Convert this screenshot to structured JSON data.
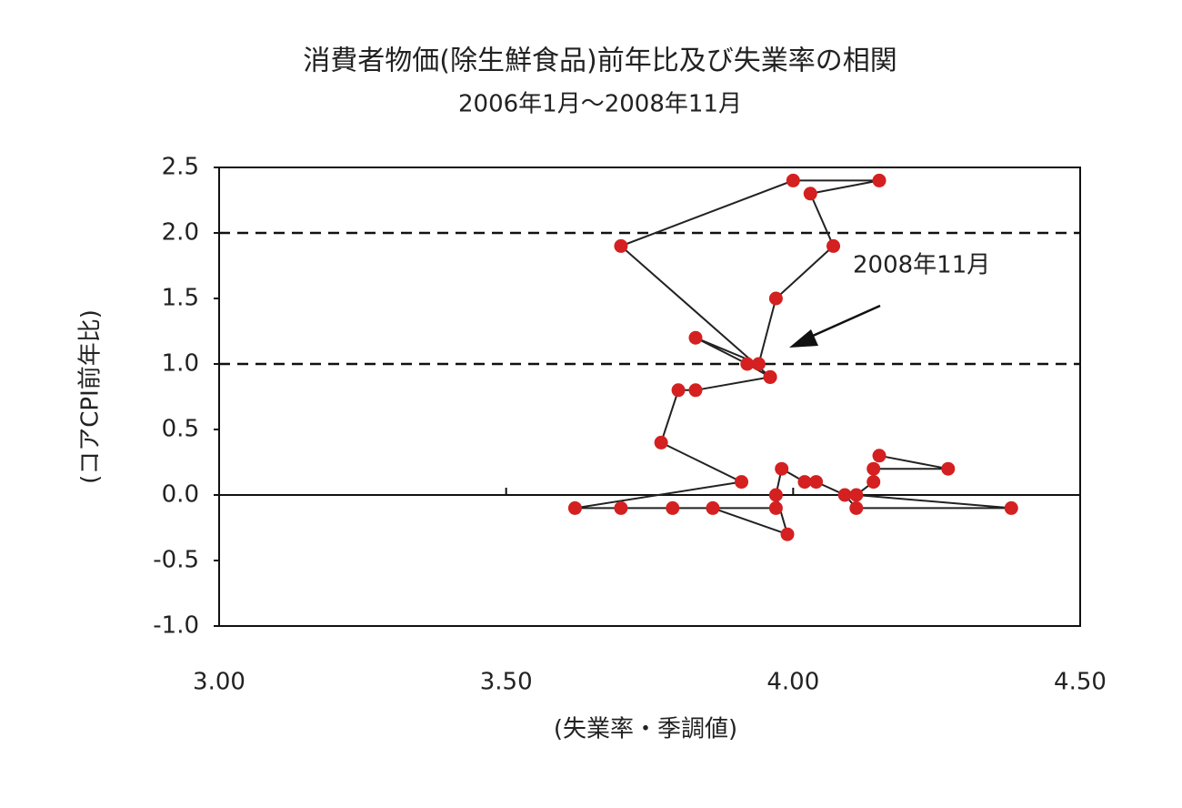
{
  "chart_data": {
    "type": "scatter",
    "title": "消費者物価(除生鮮食品)前年比及び失業率の相関",
    "subtitle": "2006年1月～2008年11月",
    "xlabel": "(失業率・季調値)",
    "ylabel": "(コアCPI前年比)",
    "annotation": "2008年11月",
    "color": "#d42020",
    "line_color": "#222222",
    "connected": true,
    "dashed_lines": [
      1,
      2
    ],
    "x": [
      4.15,
      4.27,
      4.14,
      4.14,
      4.11,
      4.38,
      4.11,
      4.09,
      4.04,
      4.02,
      3.98,
      3.97,
      3.99,
      3.86,
      3.97,
      3.79,
      3.7,
      3.62,
      3.91,
      3.77,
      3.8,
      3.83,
      3.96,
      3.92,
      3.83,
      3.94,
      3.97,
      4.07,
      4.03,
      4.15,
      4.0,
      3.7,
      3.96
    ],
    "y": [
      0.3,
      0.2,
      0.2,
      0.1,
      0.0,
      -0.1,
      -0.1,
      0.0,
      0.1,
      0.1,
      0.2,
      0.0,
      -0.3,
      -0.1,
      -0.1,
      -0.1,
      -0.1,
      -0.1,
      0.1,
      0.4,
      0.8,
      0.8,
      0.9,
      1.0,
      1.2,
      1.0,
      1.5,
      1.9,
      2.3,
      2.4,
      2.4,
      1.9,
      0.9
    ],
    "xlim": [
      3.0,
      4.5
    ],
    "ylim": [
      -1.0,
      2.5
    ],
    "xticks": [
      {
        "value": 3.0,
        "label": "3.00"
      },
      {
        "value": 3.5,
        "label": "3.50"
      },
      {
        "value": 4.0,
        "label": "4.00"
      },
      {
        "value": 4.5,
        "label": "4.50"
      }
    ],
    "yticks": [
      {
        "value": -1.0,
        "label": "-1.0"
      },
      {
        "value": -0.5,
        "label": "-0.5"
      },
      {
        "value": 0.0,
        "label": "0.0"
      },
      {
        "value": 0.5,
        "label": "0.5"
      },
      {
        "value": 1.0,
        "label": "1.0"
      },
      {
        "value": 1.5,
        "label": "1.5"
      },
      {
        "value": 2.0,
        "label": "2.0"
      },
      {
        "value": 2.5,
        "label": "2.5"
      }
    ]
  }
}
